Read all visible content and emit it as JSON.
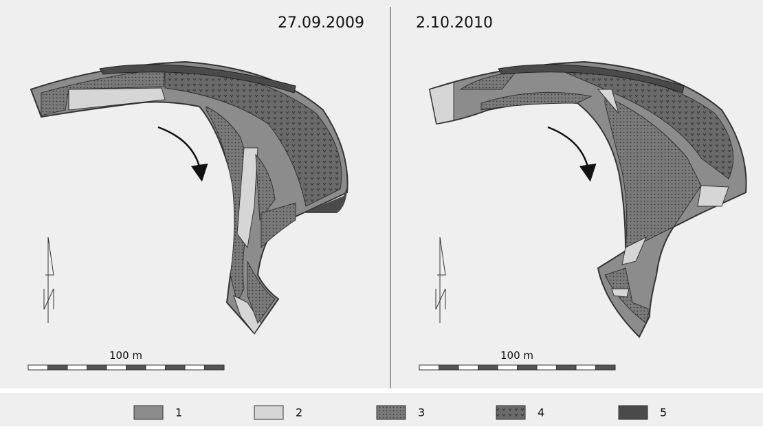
{
  "panels": [
    {
      "date": "27.09.2009",
      "scale_label": "100 m"
    },
    {
      "date": "2.10.2010",
      "scale_label": "100 m"
    }
  ],
  "legend": [
    {
      "label": "1"
    },
    {
      "label": "2"
    },
    {
      "label": "3"
    },
    {
      "label": "4"
    },
    {
      "label": "5"
    }
  ]
}
